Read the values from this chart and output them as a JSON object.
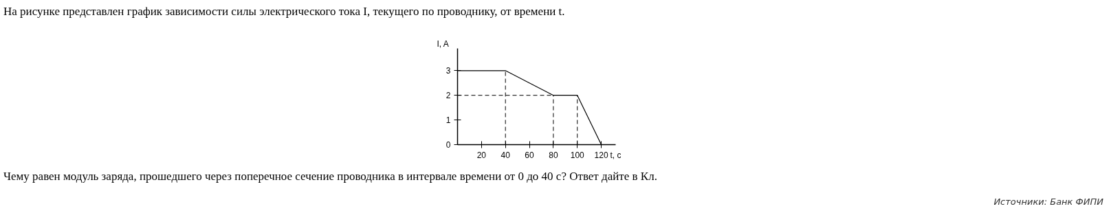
{
  "chart_data": {
    "type": "line",
    "title": "На рисунке представлен график зависимости силы электрического тока I, текущего по проводнику, от времени t.",
    "xlabel": "t, c",
    "ylabel": "I, A",
    "x": [
      0,
      40,
      80,
      100,
      120
    ],
    "series": [
      {
        "color": "#000000",
        "values": [
          3,
          3,
          2,
          2,
          0
        ]
      }
    ],
    "xlim": [
      0,
      132
    ],
    "ylim": [
      0,
      3.9
    ],
    "xticks": [
      20,
      40,
      60,
      80,
      100,
      120
    ],
    "yticks": [
      0,
      1,
      2,
      3
    ],
    "ref_lines": [
      {
        "axis": "x",
        "value": 40,
        "color": "#000000",
        "line_style": "dashed"
      },
      {
        "axis": "x",
        "value": 80,
        "color": "#000000",
        "line_style": "dashed"
      },
      {
        "axis": "x",
        "value": 100,
        "color": "#000000",
        "line_style": "dashed"
      },
      {
        "axis": "y",
        "value": 2,
        "color": "#000000",
        "line_style": "dashed"
      }
    ],
    "grid": false,
    "marker": "none",
    "line_style": "solid",
    "annotations": [
      "Чему равен модуль заряда, прошедшего через поперечное сечение проводника в интервале времени от 0 до 40 с? Ответ дайте в Кл.",
      "Источники: Банк ФИПИ"
    ]
  }
}
